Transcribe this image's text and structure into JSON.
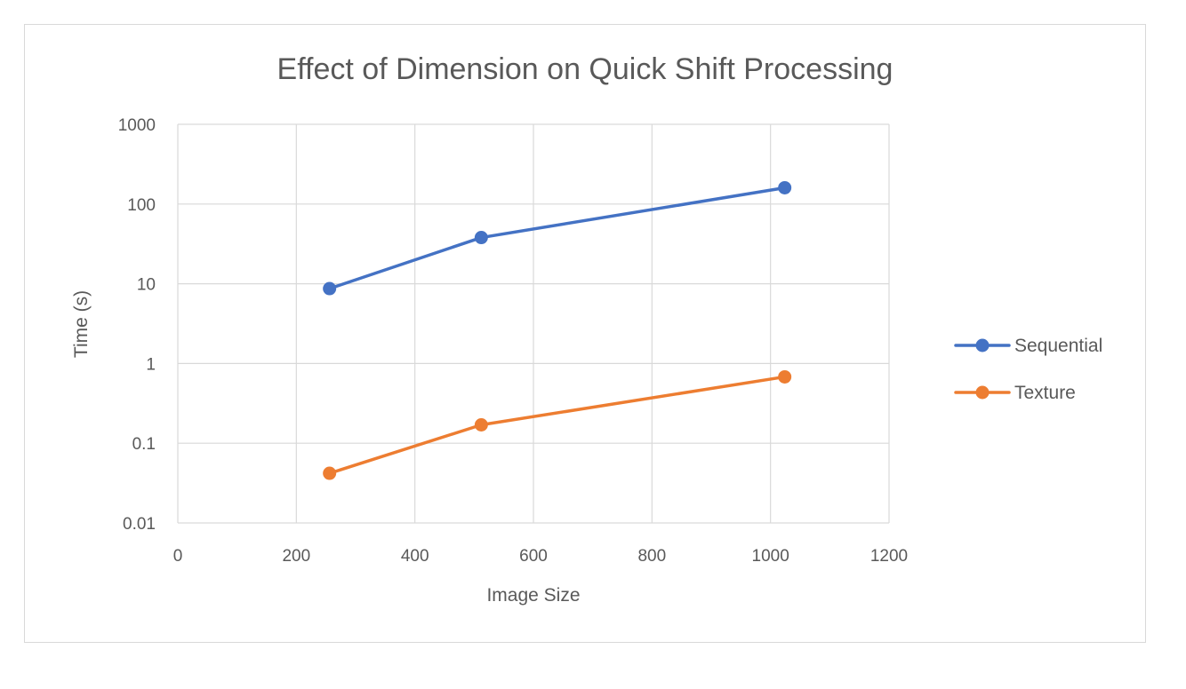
{
  "chart_data": {
    "type": "line",
    "title": "Effect of Dimension on Quick Shift Processing",
    "xlabel": "Image Size",
    "ylabel": "Time (s)",
    "xlim": [
      0,
      1200
    ],
    "ylim": [
      0.01,
      1000
    ],
    "yscale": "log",
    "grid": true,
    "x_ticks": [
      "0",
      "200",
      "400",
      "600",
      "800",
      "1000",
      "1200"
    ],
    "x_tick_values": [
      0,
      200,
      400,
      600,
      800,
      1000,
      1200
    ],
    "y_ticks": [
      "0.01",
      "0.1",
      "1",
      "10",
      "100",
      "1000"
    ],
    "y_tick_values": [
      0.01,
      0.1,
      1,
      10,
      100,
      1000
    ],
    "legend_position": "right",
    "series": [
      {
        "name": "Sequential",
        "color": "#4472c4",
        "x": [
          256,
          512,
          1024
        ],
        "y": [
          8.7,
          38,
          160
        ]
      },
      {
        "name": "Texture",
        "color": "#ed7d31",
        "x": [
          256,
          512,
          1024
        ],
        "y": [
          0.042,
          0.17,
          0.68
        ]
      }
    ]
  }
}
